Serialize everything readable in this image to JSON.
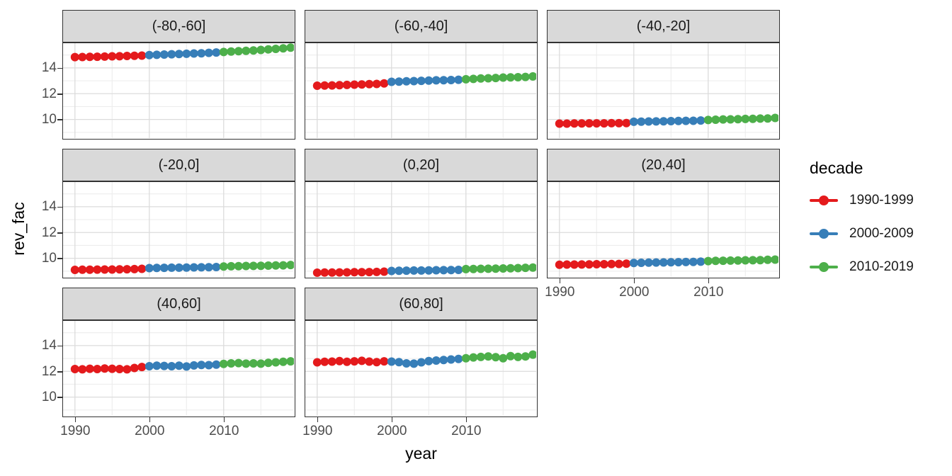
{
  "figure": {
    "xlabel": "year",
    "ylabel": "rev_fac",
    "legend": {
      "title": "decade",
      "items": [
        {
          "label": "1990-1999",
          "color": "#E41A1C"
        },
        {
          "label": "2000-2009",
          "color": "#377EB8"
        },
        {
          "label": "2010-2019",
          "color": "#4DAF4A"
        }
      ]
    },
    "colors": {
      "strip_bg": "#D9D9D9",
      "panel_border": "#333333",
      "grid_major": "#DCDCDC",
      "grid_minor": "#EDEDED",
      "tick_text": "#4D4D4D"
    }
  },
  "chart_data": {
    "type": "scatter",
    "title": "",
    "xlabel": "year",
    "ylabel": "rev_fac",
    "legend_title": "decade",
    "legend_position": "right",
    "grid": "major and minor, light gray on white panels",
    "facet_layout": {
      "rows": 3,
      "cols": 3,
      "filled_cells": 8
    },
    "x": [
      1990,
      1991,
      1992,
      1993,
      1994,
      1995,
      1996,
      1997,
      1998,
      1999,
      2000,
      2001,
      2002,
      2003,
      2004,
      2005,
      2006,
      2007,
      2008,
      2009,
      2010,
      2011,
      2012,
      2013,
      2014,
      2015,
      2016,
      2017,
      2018,
      2019
    ],
    "xlim": [
      1988.4,
      2019.45
    ],
    "ylim": [
      8.55,
      15.92
    ],
    "x_ticks": [
      1990,
      2000,
      2010
    ],
    "y_ticks": [
      10,
      12,
      14
    ],
    "x_tick_labels": [
      "1990",
      "2000",
      "2010"
    ],
    "y_tick_labels": [
      "10",
      "12",
      "14"
    ],
    "x_minor_breaks": [
      1995,
      2005,
      2015
    ],
    "y_minor_breaks": [
      9,
      11,
      13,
      15
    ],
    "decade_groups": [
      {
        "name": "1990-1999",
        "year_range": [
          1990,
          1999
        ],
        "color": "#E41A1C"
      },
      {
        "name": "2000-2009",
        "year_range": [
          2000,
          2009
        ],
        "color": "#377EB8"
      },
      {
        "name": "2010-2019",
        "year_range": [
          2010,
          2019
        ],
        "color": "#4DAF4A"
      }
    ],
    "facets": [
      {
        "label": "(-80,-60]",
        "values": [
          14.84,
          14.85,
          14.86,
          14.87,
          14.88,
          14.9,
          14.91,
          14.93,
          14.94,
          14.96,
          15.0,
          15.02,
          15.04,
          15.06,
          15.08,
          15.1,
          15.12,
          15.14,
          15.17,
          15.2,
          15.24,
          15.27,
          15.3,
          15.33,
          15.36,
          15.4,
          15.44,
          15.48,
          15.52,
          15.58
        ]
      },
      {
        "label": "(-60,-40]",
        "values": [
          12.62,
          12.63,
          12.64,
          12.66,
          12.68,
          12.7,
          12.72,
          12.74,
          12.76,
          12.8,
          12.92,
          12.94,
          12.96,
          12.98,
          13.0,
          13.02,
          13.04,
          13.05,
          13.06,
          13.08,
          13.12,
          13.15,
          13.18,
          13.2,
          13.22,
          13.25,
          13.27,
          13.28,
          13.3,
          13.34
        ]
      },
      {
        "label": "(-40,-20]",
        "values": [
          9.68,
          9.68,
          9.69,
          9.69,
          9.7,
          9.7,
          9.7,
          9.71,
          9.71,
          9.72,
          9.82,
          9.83,
          9.84,
          9.85,
          9.86,
          9.87,
          9.88,
          9.89,
          9.9,
          9.92,
          9.96,
          9.98,
          10.0,
          10.01,
          10.02,
          10.04,
          10.05,
          10.07,
          10.08,
          10.12
        ]
      },
      {
        "label": "(-20,0]",
        "values": [
          9.1,
          9.11,
          9.11,
          9.12,
          9.13,
          9.13,
          9.14,
          9.15,
          9.16,
          9.18,
          9.24,
          9.25,
          9.26,
          9.27,
          9.27,
          9.28,
          9.29,
          9.3,
          9.31,
          9.32,
          9.36,
          9.38,
          9.39,
          9.4,
          9.41,
          9.42,
          9.43,
          9.44,
          9.45,
          9.48
        ]
      },
      {
        "label": "(0,20]",
        "values": [
          8.88,
          8.89,
          8.89,
          8.9,
          8.91,
          8.92,
          8.92,
          8.93,
          8.94,
          8.96,
          9.02,
          9.03,
          9.04,
          9.05,
          9.05,
          9.06,
          9.07,
          9.08,
          9.09,
          9.1,
          9.16,
          9.17,
          9.18,
          9.19,
          9.2,
          9.21,
          9.22,
          9.24,
          9.26,
          9.28
        ]
      },
      {
        "label": "(20,40]",
        "values": [
          9.5,
          9.51,
          9.51,
          9.52,
          9.53,
          9.54,
          9.54,
          9.55,
          9.56,
          9.58,
          9.64,
          9.65,
          9.66,
          9.67,
          9.68,
          9.69,
          9.7,
          9.71,
          9.72,
          9.74,
          9.78,
          9.8,
          9.81,
          9.82,
          9.83,
          9.84,
          9.85,
          9.86,
          9.88,
          9.9
        ]
      },
      {
        "label": "(40,60]",
        "values": [
          12.18,
          12.16,
          12.2,
          12.18,
          12.22,
          12.2,
          12.18,
          12.16,
          12.26,
          12.34,
          12.4,
          12.44,
          12.42,
          12.4,
          12.44,
          12.38,
          12.46,
          12.5,
          12.48,
          12.52,
          12.58,
          12.62,
          12.64,
          12.6,
          12.62,
          12.6,
          12.66,
          12.7,
          12.74,
          12.78
        ]
      },
      {
        "label": "(60,80]",
        "values": [
          12.7,
          12.74,
          12.76,
          12.8,
          12.74,
          12.78,
          12.82,
          12.76,
          12.72,
          12.78,
          12.76,
          12.72,
          12.62,
          12.6,
          12.7,
          12.8,
          12.84,
          12.88,
          12.92,
          12.96,
          13.02,
          13.08,
          13.12,
          13.16,
          13.1,
          13.02,
          13.18,
          13.12,
          13.16,
          13.3
        ]
      }
    ]
  }
}
